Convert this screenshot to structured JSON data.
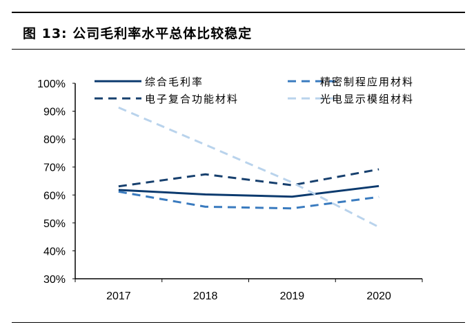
{
  "title": "图 13:  公司毛利率水平总体比较稳定",
  "chart_data": {
    "type": "line",
    "title": "",
    "xlabel": "",
    "ylabel": "",
    "categories": [
      "2017",
      "2018",
      "2019",
      "2020"
    ],
    "ylim": [
      30,
      100
    ],
    "yticks": [
      "30%",
      "40%",
      "50%",
      "60%",
      "70%",
      "80%",
      "90%",
      "100%"
    ],
    "grid": false,
    "legend_position": "top",
    "series": [
      {
        "name": "综合毛利率",
        "values": [
          61.8,
          60.2,
          59.4,
          63.2
        ],
        "color": "#0b3a6e",
        "dash": "solid"
      },
      {
        "name": "精密制程应用材料",
        "values": [
          61.2,
          55.8,
          55.2,
          59.3
        ],
        "color": "#3a7bbf",
        "dash": "dashed"
      },
      {
        "name": "电子复合功能材料",
        "values": [
          63.1,
          67.4,
          63.5,
          69.2
        ],
        "color": "#17406e",
        "dash": "dashed"
      },
      {
        "name": "光电显示模组材料",
        "values": [
          91.3,
          78.0,
          64.5,
          48.5
        ],
        "color": "#b9d3ec",
        "dash": "dashed"
      }
    ]
  }
}
